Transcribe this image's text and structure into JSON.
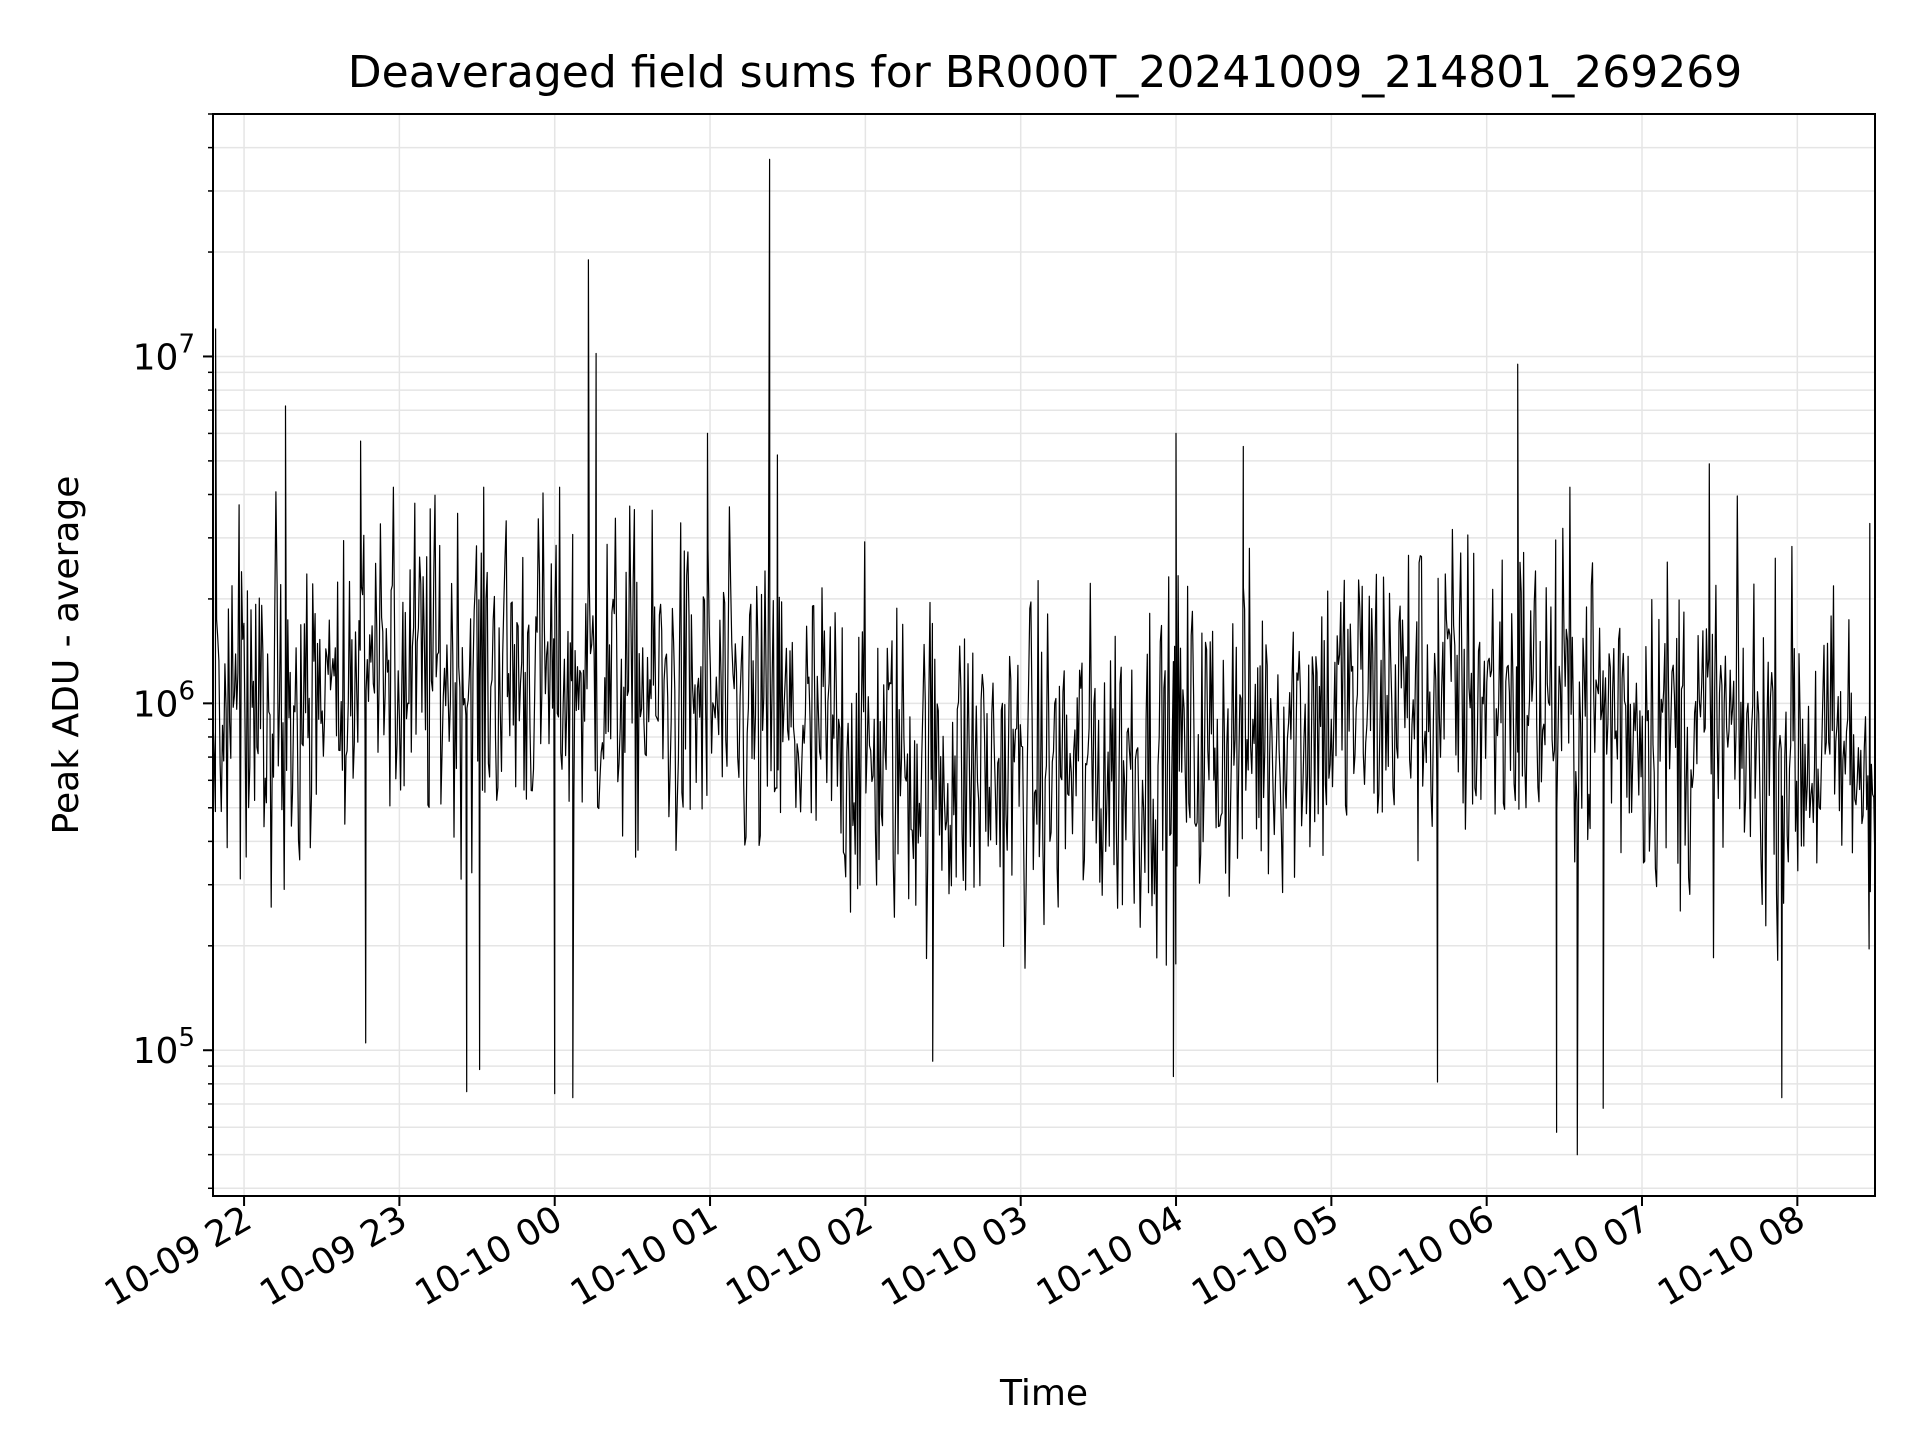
{
  "chart_data": {
    "type": "line",
    "title": "Deaveraged field sums for BR000T_20241009_214801_269269",
    "xlabel": "Time",
    "ylabel": "Peak ADU - average",
    "yscale": "log",
    "ylim": [
      38000,
      50000000
    ],
    "xlim": [
      "2024-10-09 21:48",
      "2024-10-10 08:30"
    ],
    "grid": true,
    "line_color": "#000000",
    "grid_color": "#e5e5e5",
    "x_ticks": [
      {
        "value": "2024-10-09 22:00",
        "label": "10-09 22"
      },
      {
        "value": "2024-10-09 23:00",
        "label": "10-09 23"
      },
      {
        "value": "2024-10-10 00:00",
        "label": "10-10 00"
      },
      {
        "value": "2024-10-10 01:00",
        "label": "10-10 01"
      },
      {
        "value": "2024-10-10 02:00",
        "label": "10-10 02"
      },
      {
        "value": "2024-10-10 03:00",
        "label": "10-10 03"
      },
      {
        "value": "2024-10-10 04:00",
        "label": "10-10 04"
      },
      {
        "value": "2024-10-10 05:00",
        "label": "10-10 05"
      },
      {
        "value": "2024-10-10 06:00",
        "label": "10-10 06"
      },
      {
        "value": "2024-10-10 07:00",
        "label": "10-10 07"
      },
      {
        "value": "2024-10-10 08:00",
        "label": "10-10 08"
      }
    ],
    "y_ticks": [
      {
        "value": 100000,
        "base": "10",
        "exp": "5"
      },
      {
        "value": 1000000,
        "base": "10",
        "exp": "6"
      },
      {
        "value": 10000000,
        "base": "10",
        "exp": "7"
      }
    ],
    "series": [
      {
        "values": [
          [
            "2024-10-09 21:49",
            12000000
          ],
          [
            "2024-10-09 22:16",
            7200000
          ],
          [
            "2024-10-09 22:45",
            5700000
          ],
          [
            "2024-10-09 22:47",
            105000
          ],
          [
            "2024-10-09 23:26",
            76000
          ],
          [
            "2024-10-09 23:31",
            88000
          ],
          [
            "2024-10-10 00:00",
            75000
          ],
          [
            "2024-10-10 00:07",
            73000
          ],
          [
            "2024-10-10 00:13",
            19000000
          ],
          [
            "2024-10-10 00:16",
            10200000
          ],
          [
            "2024-10-10 00:59",
            6000000
          ],
          [
            "2024-10-10 01:23",
            37000000
          ],
          [
            "2024-10-10 01:26",
            5200000
          ],
          [
            "2024-10-10 02:26",
            93000
          ],
          [
            "2024-10-10 03:59",
            84000
          ],
          [
            "2024-10-10 04:00",
            6000000
          ],
          [
            "2024-10-10 04:26",
            5500000
          ],
          [
            "2024-10-10 05:41",
            81000
          ],
          [
            "2024-10-10 06:12",
            9500000
          ],
          [
            "2024-10-10 06:27",
            58000
          ],
          [
            "2024-10-10 06:35",
            50000
          ],
          [
            "2024-10-10 06:45",
            68000
          ],
          [
            "2024-10-10 07:26",
            4900000
          ],
          [
            "2024-10-10 07:54",
            73000
          ],
          [
            "2024-10-10 08:28",
            3300000
          ]
        ]
      }
    ]
  }
}
